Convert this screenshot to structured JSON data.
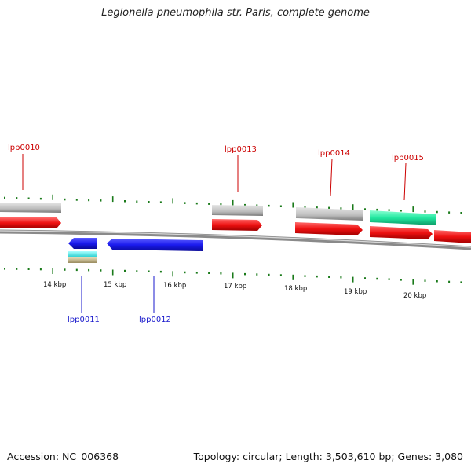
{
  "title": "Legionella pneumophila str. Paris, complete genome",
  "accession": "Accession: NC_006368",
  "summary": "Topology: circular; Length: 3,503,610 bp; Genes: 3,080",
  "colors": {
    "forward_cds": "#ee1111",
    "reverse_cds": "#1a1aee",
    "gene": "#bdbdbd",
    "rrna_teal": "#22e8a0",
    "cyan": "#33eeee",
    "tan": "#c8b88a",
    "tick": "#1a7a1a",
    "backbone": "#777777",
    "label_forward": "#cc0000",
    "label_reverse": "#1a1acc"
  },
  "scale_labels": [
    "14 kbp",
    "15 kbp",
    "16 kbp",
    "17 kbp",
    "18 kbp",
    "19 kbp",
    "20 kbp"
  ],
  "forward_genes": [
    "lpp0010",
    "lpp0013",
    "lpp0014",
    "lpp0015"
  ],
  "reverse_genes": [
    "lpp0011",
    "lpp0012"
  ]
}
